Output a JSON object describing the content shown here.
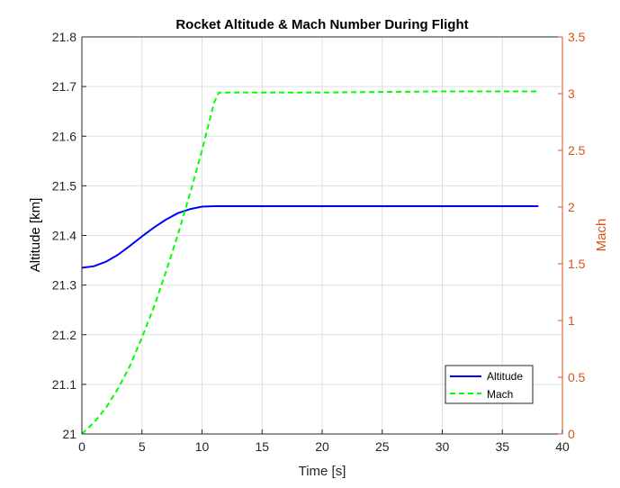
{
  "chart_data": {
    "type": "line",
    "title": "Rocket Altitude & Mach Number During Flight",
    "xlabel": "Time [s]",
    "ylabel_left": "Altitude [km]",
    "ylabel_right": "Mach",
    "xlim": [
      0,
      40
    ],
    "ylim_left": [
      21,
      21.8
    ],
    "ylim_right": [
      0,
      3.5
    ],
    "xticks": [
      0,
      5,
      10,
      15,
      20,
      25,
      30,
      35,
      40
    ],
    "yticks_left": [
      21,
      21.1,
      21.2,
      21.3,
      21.4,
      21.5,
      21.6,
      21.7,
      21.8
    ],
    "yticks_right": [
      0,
      0.5,
      1,
      1.5,
      2,
      2.5,
      3,
      3.5
    ],
    "grid": true,
    "legend_position": "bottom-right",
    "series": [
      {
        "name": "Altitude",
        "axis": "left",
        "color": "#0000ff",
        "line_style": "solid",
        "x": [
          0,
          1,
          2,
          3,
          4,
          5,
          6,
          7,
          8,
          9,
          10,
          11,
          12,
          15,
          20,
          25,
          30,
          35,
          38
        ],
        "y": [
          21.335,
          21.338,
          21.347,
          21.361,
          21.379,
          21.398,
          21.416,
          21.432,
          21.445,
          21.453,
          21.458,
          21.459,
          21.459,
          21.459,
          21.459,
          21.459,
          21.459,
          21.459,
          21.459
        ]
      },
      {
        "name": "Mach",
        "axis": "right",
        "color": "#00ff00",
        "line_style": "dashed",
        "x": [
          0,
          1,
          2,
          3,
          4,
          5,
          6,
          7,
          8,
          9,
          10,
          11,
          11.4,
          15,
          20,
          25,
          30,
          35,
          38
        ],
        "y": [
          0,
          0.1,
          0.23,
          0.4,
          0.6,
          0.85,
          1.12,
          1.43,
          1.76,
          2.12,
          2.5,
          2.92,
          3.01,
          3.01,
          3.01,
          3.015,
          3.02,
          3.02,
          3.02
        ]
      }
    ],
    "colors": {
      "left_axis": "#262626",
      "right_axis": "#d95319",
      "grid": "#dfdfdf"
    }
  }
}
